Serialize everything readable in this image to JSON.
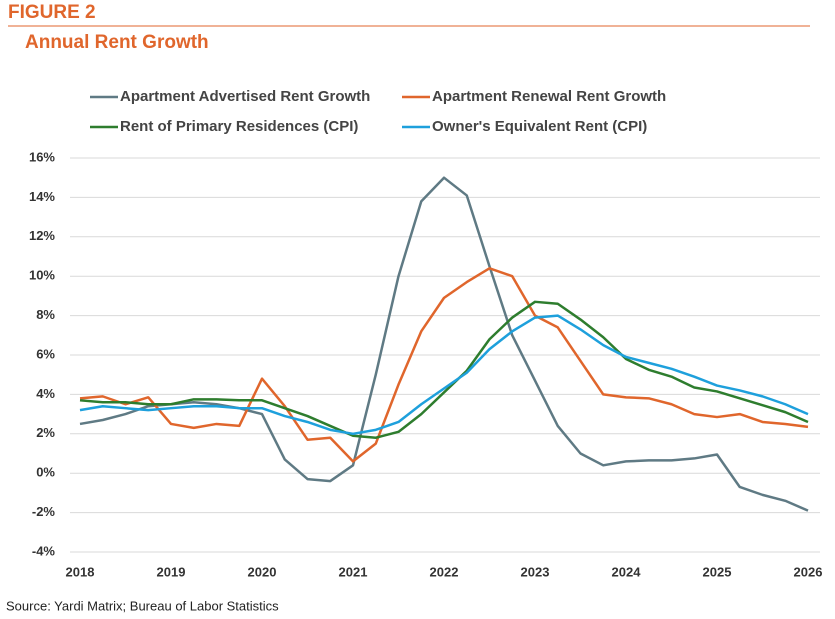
{
  "chart_data": {
    "type": "line",
    "header": "FIGURE 2",
    "title": "Annual Rent Growth",
    "source": "Source: Yardi Matrix; Bureau of Labor Statistics",
    "x": [
      2018,
      2018.25,
      2018.5,
      2018.75,
      2019,
      2019.25,
      2019.5,
      2019.75,
      2020,
      2020.25,
      2020.5,
      2020.75,
      2021,
      2021.25,
      2021.5,
      2021.75,
      2022,
      2022.25,
      2022.5,
      2022.75,
      2023,
      2023.25,
      2023.5,
      2023.75,
      2024,
      2024.25,
      2024.5,
      2024.75,
      2025,
      2025.25,
      2025.5,
      2025.75,
      2026
    ],
    "xlim": [
      2018,
      2026
    ],
    "xticks": [
      2018,
      2019,
      2020,
      2021,
      2022,
      2023,
      2024,
      2025,
      2026
    ],
    "ylim": [
      -4,
      16
    ],
    "yticks": [
      {
        "value": -4,
        "label": "-4%"
      },
      {
        "value": -2,
        "label": "-2%"
      },
      {
        "value": 0,
        "label": "0%"
      },
      {
        "value": 2,
        "label": "2%"
      },
      {
        "value": 4,
        "label": "4%"
      },
      {
        "value": 6,
        "label": "6%"
      },
      {
        "value": 8,
        "label": "8%"
      },
      {
        "value": 10,
        "label": "10%"
      },
      {
        "value": 12,
        "label": "12%"
      },
      {
        "value": 14,
        "label": "14%"
      },
      {
        "value": 16,
        "label": "16%"
      }
    ],
    "grid": true,
    "series": [
      {
        "name": "Apartment Advertised Rent Growth",
        "color": "#5f7a84",
        "values": [
          2.5,
          2.7,
          3.0,
          3.4,
          3.5,
          3.6,
          3.5,
          3.3,
          3.0,
          0.7,
          -0.3,
          -0.4,
          0.4,
          5.0,
          10.0,
          13.8,
          15.0,
          14.1,
          10.5,
          7.0,
          4.7,
          2.4,
          1.0,
          0.4,
          0.6,
          0.65,
          0.65,
          0.75,
          0.95,
          -0.7,
          -1.1,
          -1.4,
          -1.9
        ]
      },
      {
        "name": "Apartment Renewal Rent Growth",
        "color": "#e0662c",
        "values": [
          3.8,
          3.9,
          3.5,
          3.85,
          2.5,
          2.3,
          2.5,
          2.4,
          4.8,
          3.4,
          1.7,
          1.8,
          0.6,
          1.5,
          4.5,
          7.2,
          8.9,
          9.7,
          10.4,
          10.0,
          8.0,
          7.4,
          5.7,
          4.0,
          3.85,
          3.8,
          3.5,
          3.0,
          2.85,
          3.0,
          2.6,
          2.5,
          2.35
        ]
      },
      {
        "name": "Rent of Primary Residences (CPI)",
        "color": "#2e7d2e",
        "values": [
          3.7,
          3.6,
          3.6,
          3.5,
          3.5,
          3.75,
          3.75,
          3.7,
          3.7,
          3.3,
          2.9,
          2.4,
          1.9,
          1.8,
          2.1,
          3.0,
          4.1,
          5.2,
          6.8,
          7.9,
          8.7,
          8.6,
          7.8,
          6.9,
          5.8,
          5.25,
          4.9,
          4.35,
          4.15,
          3.8,
          3.45,
          3.1,
          2.6
        ]
      },
      {
        "name": "Owner's Equivalent Rent (CPI)",
        "color": "#1ea0dc",
        "values": [
          3.2,
          3.4,
          3.3,
          3.2,
          3.3,
          3.4,
          3.4,
          3.3,
          3.3,
          2.9,
          2.6,
          2.2,
          2.0,
          2.2,
          2.6,
          3.5,
          4.3,
          5.1,
          6.3,
          7.2,
          7.9,
          8.0,
          7.3,
          6.5,
          5.9,
          5.6,
          5.3,
          4.9,
          4.45,
          4.2,
          3.9,
          3.5,
          3.0
        ]
      }
    ]
  }
}
